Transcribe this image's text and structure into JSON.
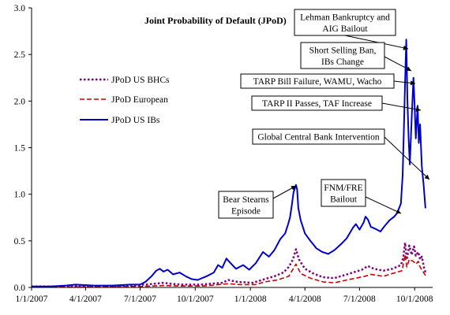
{
  "chart_data": {
    "type": "line",
    "title": "Joint Probability of Default (JPoD)",
    "xlabel": "",
    "ylabel": "",
    "ylim": [
      0,
      3.0
    ],
    "xlim": [
      "2007-01-01",
      "2008-10-31"
    ],
    "x_ticks": [
      "1/1/2007",
      "4/1/2007",
      "7/1/2007",
      "10/1/2007",
      "1/1/2008",
      "4/1/2008",
      "7/1/2008",
      "10/1/2008"
    ],
    "y_ticks": [
      "0.0",
      "0.5",
      "1.0",
      "1.5",
      "2.0",
      "2.5",
      "3.0"
    ],
    "grid": false,
    "legend_position": "left",
    "series": [
      {
        "name": "JPoD US BHCs",
        "color": "#800080",
        "style": "dotted",
        "points": [
          [
            "2007-01-01",
            0.01
          ],
          [
            "2007-03-01",
            0.01
          ],
          [
            "2007-05-01",
            0.01
          ],
          [
            "2007-06-20",
            0.02
          ],
          [
            "2007-07-10",
            0.03
          ],
          [
            "2007-07-25",
            0.04
          ],
          [
            "2007-08-10",
            0.05
          ],
          [
            "2007-08-20",
            0.04
          ],
          [
            "2007-09-10",
            0.03
          ],
          [
            "2007-10-10",
            0.03
          ],
          [
            "2007-11-15",
            0.05
          ],
          [
            "2007-11-25",
            0.08
          ],
          [
            "2007-12-10",
            0.06
          ],
          [
            "2008-01-05",
            0.05
          ],
          [
            "2008-01-25",
            0.09
          ],
          [
            "2008-02-10",
            0.12
          ],
          [
            "2008-02-25",
            0.16
          ],
          [
            "2008-03-05",
            0.22
          ],
          [
            "2008-03-12",
            0.3
          ],
          [
            "2008-03-17",
            0.41
          ],
          [
            "2008-03-22",
            0.3
          ],
          [
            "2008-04-01",
            0.2
          ],
          [
            "2008-04-15",
            0.15
          ],
          [
            "2008-05-01",
            0.11
          ],
          [
            "2008-05-20",
            0.1
          ],
          [
            "2008-06-05",
            0.13
          ],
          [
            "2008-06-20",
            0.16
          ],
          [
            "2008-07-05",
            0.19
          ],
          [
            "2008-07-15",
            0.23
          ],
          [
            "2008-07-25",
            0.2
          ],
          [
            "2008-08-10",
            0.18
          ],
          [
            "2008-08-25",
            0.2
          ],
          [
            "2008-09-08",
            0.24
          ],
          [
            "2008-09-12",
            0.32
          ],
          [
            "2008-09-15",
            0.48
          ],
          [
            "2008-09-18",
            0.3
          ],
          [
            "2008-09-22",
            0.45
          ],
          [
            "2008-09-26",
            0.35
          ],
          [
            "2008-09-30",
            0.44
          ],
          [
            "2008-10-03",
            0.34
          ],
          [
            "2008-10-07",
            0.38
          ],
          [
            "2008-10-10",
            0.3
          ],
          [
            "2008-10-13",
            0.33
          ],
          [
            "2008-10-17",
            0.2
          ],
          [
            "2008-10-20",
            0.15
          ]
        ]
      },
      {
        "name": "JPoD European",
        "color": "#cc0000",
        "style": "dashed",
        "points": [
          [
            "2007-01-01",
            0.005
          ],
          [
            "2007-04-01",
            0.006
          ],
          [
            "2007-07-01",
            0.01
          ],
          [
            "2007-08-10",
            0.02
          ],
          [
            "2007-09-10",
            0.015
          ],
          [
            "2007-10-15",
            0.015
          ],
          [
            "2007-11-25",
            0.04
          ],
          [
            "2007-12-15",
            0.03
          ],
          [
            "2008-01-10",
            0.03
          ],
          [
            "2008-01-25",
            0.06
          ],
          [
            "2008-02-15",
            0.08
          ],
          [
            "2008-03-05",
            0.12
          ],
          [
            "2008-03-17",
            0.25
          ],
          [
            "2008-03-25",
            0.15
          ],
          [
            "2008-04-10",
            0.1
          ],
          [
            "2008-05-01",
            0.06
          ],
          [
            "2008-05-20",
            0.05
          ],
          [
            "2008-06-10",
            0.08
          ],
          [
            "2008-06-25",
            0.1
          ],
          [
            "2008-07-10",
            0.12
          ],
          [
            "2008-07-20",
            0.14
          ],
          [
            "2008-08-10",
            0.12
          ],
          [
            "2008-08-25",
            0.15
          ],
          [
            "2008-09-10",
            0.18
          ],
          [
            "2008-09-15",
            0.35
          ],
          [
            "2008-09-18",
            0.22
          ],
          [
            "2008-09-22",
            0.3
          ],
          [
            "2008-09-29",
            0.28
          ],
          [
            "2008-10-03",
            0.25
          ],
          [
            "2008-10-07",
            0.28
          ],
          [
            "2008-10-10",
            0.22
          ],
          [
            "2008-10-14",
            0.18
          ],
          [
            "2008-10-20",
            0.12
          ]
        ]
      },
      {
        "name": "JPoD US IBs",
        "color": "#0000cc",
        "style": "solid",
        "points": [
          [
            "2007-01-01",
            0.01
          ],
          [
            "2007-02-01",
            0.01
          ],
          [
            "2007-02-27",
            0.02
          ],
          [
            "2007-03-15",
            0.03
          ],
          [
            "2007-04-15",
            0.02
          ],
          [
            "2007-05-15",
            0.02
          ],
          [
            "2007-06-15",
            0.03
          ],
          [
            "2007-07-01",
            0.03
          ],
          [
            "2007-07-10",
            0.06
          ],
          [
            "2007-07-20",
            0.12
          ],
          [
            "2007-07-28",
            0.18
          ],
          [
            "2007-08-03",
            0.2
          ],
          [
            "2007-08-09",
            0.17
          ],
          [
            "2007-08-16",
            0.19
          ],
          [
            "2007-08-25",
            0.14
          ],
          [
            "2007-09-05",
            0.16
          ],
          [
            "2007-09-15",
            0.12
          ],
          [
            "2007-09-25",
            0.09
          ],
          [
            "2007-10-05",
            0.08
          ],
          [
            "2007-10-20",
            0.12
          ],
          [
            "2007-11-01",
            0.16
          ],
          [
            "2007-11-08",
            0.24
          ],
          [
            "2007-11-15",
            0.21
          ],
          [
            "2007-11-22",
            0.31
          ],
          [
            "2007-11-29",
            0.26
          ],
          [
            "2007-12-08",
            0.2
          ],
          [
            "2007-12-20",
            0.24
          ],
          [
            "2007-12-30",
            0.19
          ],
          [
            "2008-01-10",
            0.26
          ],
          [
            "2008-01-22",
            0.38
          ],
          [
            "2008-02-01",
            0.33
          ],
          [
            "2008-02-10",
            0.4
          ],
          [
            "2008-02-20",
            0.52
          ],
          [
            "2008-02-28",
            0.58
          ],
          [
            "2008-03-04",
            0.68
          ],
          [
            "2008-03-07",
            0.75
          ],
          [
            "2008-03-10",
            0.88
          ],
          [
            "2008-03-13",
            1.02
          ],
          [
            "2008-03-17",
            1.1
          ],
          [
            "2008-03-19",
            1.05
          ],
          [
            "2008-03-21",
            0.85
          ],
          [
            "2008-03-25",
            0.72
          ],
          [
            "2008-04-01",
            0.58
          ],
          [
            "2008-04-10",
            0.5
          ],
          [
            "2008-04-20",
            0.42
          ],
          [
            "2008-04-30",
            0.38
          ],
          [
            "2008-05-10",
            0.36
          ],
          [
            "2008-05-20",
            0.4
          ],
          [
            "2008-06-01",
            0.47
          ],
          [
            "2008-06-10",
            0.53
          ],
          [
            "2008-06-20",
            0.64
          ],
          [
            "2008-06-25",
            0.68
          ],
          [
            "2008-07-01",
            0.62
          ],
          [
            "2008-07-08",
            0.7
          ],
          [
            "2008-07-11",
            0.76
          ],
          [
            "2008-07-15",
            0.73
          ],
          [
            "2008-07-20",
            0.65
          ],
          [
            "2008-07-27",
            0.63
          ],
          [
            "2008-08-05",
            0.6
          ],
          [
            "2008-08-12",
            0.66
          ],
          [
            "2008-08-20",
            0.72
          ],
          [
            "2008-08-28",
            0.76
          ],
          [
            "2008-09-02",
            0.8
          ],
          [
            "2008-09-08",
            0.9
          ],
          [
            "2008-09-11",
            1.2
          ],
          [
            "2008-09-13",
            1.7
          ],
          [
            "2008-09-15",
            2.2
          ],
          [
            "2008-09-17",
            2.66
          ],
          [
            "2008-09-19",
            2.0
          ],
          [
            "2008-09-21",
            1.6
          ],
          [
            "2008-09-23",
            1.32
          ],
          [
            "2008-09-26",
            1.8
          ],
          [
            "2008-09-29",
            2.25
          ],
          [
            "2008-10-01",
            1.95
          ],
          [
            "2008-10-03",
            1.6
          ],
          [
            "2008-10-06",
            1.95
          ],
          [
            "2008-10-08",
            1.55
          ],
          [
            "2008-10-10",
            1.75
          ],
          [
            "2008-10-13",
            1.3
          ],
          [
            "2008-10-16",
            1.1
          ],
          [
            "2008-10-19",
            0.85
          ]
        ]
      }
    ],
    "annotations": [
      {
        "lines": [
          "Lehman Bankruptcy and",
          "AIG Bailout"
        ]
      },
      {
        "lines": [
          "Short Selling Ban,",
          "IBs Change"
        ]
      },
      {
        "lines": [
          "TARP Bill Failure, WAMU, Wacho"
        ]
      },
      {
        "lines": [
          "TARP II Passes, TAF Increase"
        ]
      },
      {
        "lines": [
          "Global Central Bank Intervention"
        ]
      },
      {
        "lines": [
          "Bear Stearns",
          "Episode"
        ]
      },
      {
        "lines": [
          "FNM/FRE",
          "Bailout"
        ]
      }
    ]
  }
}
